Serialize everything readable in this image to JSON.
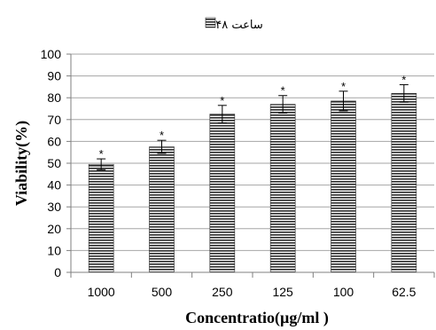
{
  "chart_data": {
    "type": "bar",
    "title": "۴۸ ساعت",
    "xlabel": "Concentratio(µg/ml )",
    "ylabel": "Viability(%)",
    "categories": [
      "1000",
      "500",
      "250",
      "125",
      "100",
      "62.5"
    ],
    "series": [
      {
        "name": "۴۸ ساعت",
        "values": [
          49.5,
          57.5,
          72.5,
          77,
          78.5,
          82
        ],
        "errors": [
          2.5,
          3,
          4,
          4,
          4.5,
          4
        ],
        "annotations": [
          "*",
          "*",
          "*",
          "*",
          "*",
          "*"
        ]
      }
    ],
    "ylim": [
      0,
      100
    ],
    "yticks": [
      0,
      10,
      20,
      30,
      40,
      50,
      60,
      70,
      80,
      90,
      100
    ],
    "grid": true,
    "legend": "top-center"
  }
}
